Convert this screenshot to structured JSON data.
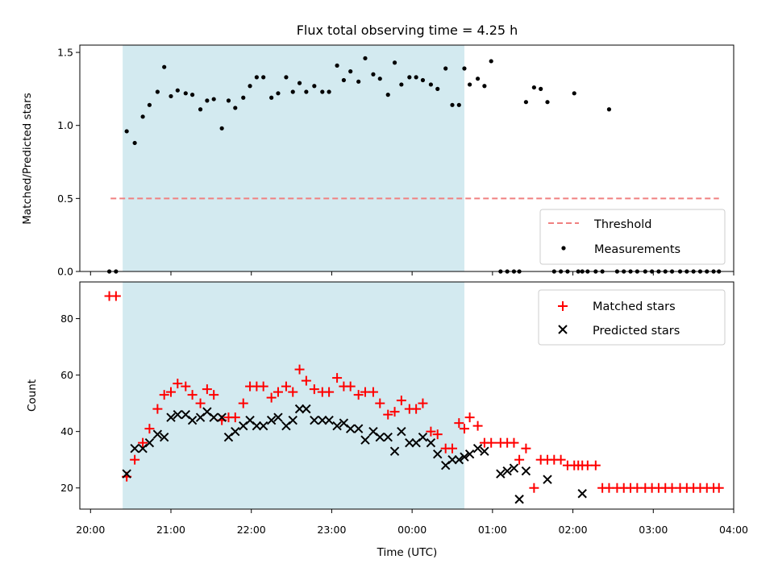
{
  "chart_data": [
    {
      "type": "scatter",
      "title": "Flux total observing time = 4.25 h",
      "ylabel": "Matched/Predicted stars",
      "xlabel": "",
      "xlim": [
        "19:52",
        "04:00"
      ],
      "ylim": [
        0,
        1.55
      ],
      "yticks": [
        "0.0",
        "0.5",
        "1.0",
        "1.5"
      ],
      "grid": false,
      "legend": "lower-right",
      "shaded_interval": [
        "20:24",
        "00:39"
      ],
      "shaded_color": "#d3eaf0",
      "threshold": {
        "name": "Threshold",
        "value": 0.5,
        "x_range": [
          "20:15",
          "03:49"
        ],
        "color": "#f08080"
      },
      "series": [
        {
          "name": "Measurements",
          "color": "#000000",
          "x": [
            "20:14",
            "20:19",
            "20:27",
            "20:33",
            "20:39",
            "20:44",
            "20:50",
            "20:55",
            "21:00",
            "21:05",
            "21:11",
            "21:16",
            "21:22",
            "21:27",
            "21:32",
            "21:38",
            "21:43",
            "21:48",
            "21:54",
            "21:59",
            "22:04",
            "22:09",
            "22:15",
            "22:20",
            "22:26",
            "22:31",
            "22:36",
            "22:41",
            "22:47",
            "22:53",
            "22:58",
            "23:04",
            "23:09",
            "23:14",
            "23:20",
            "23:25",
            "23:31",
            "23:36",
            "23:42",
            "23:47",
            "23:52",
            "23:58",
            "00:03",
            "00:08",
            "00:14",
            "00:19",
            "00:25",
            "00:30",
            "00:35",
            "00:39",
            "00:43",
            "00:49",
            "00:54",
            "00:59",
            "01:06",
            "01:11",
            "01:16",
            "01:20",
            "01:25",
            "01:31",
            "01:36",
            "01:41",
            "01:46",
            "01:51",
            "01:56",
            "02:01",
            "02:04",
            "02:07",
            "02:11",
            "02:17",
            "02:22",
            "02:27",
            "02:33",
            "02:38",
            "02:43",
            "02:48",
            "02:54",
            "02:59",
            "03:04",
            "03:09",
            "03:14",
            "03:20",
            "03:25",
            "03:30",
            "03:35",
            "03:40",
            "03:45",
            "03:49"
          ],
          "y": [
            0,
            0,
            0.96,
            0.88,
            1.06,
            1.14,
            1.23,
            1.4,
            1.2,
            1.24,
            1.22,
            1.21,
            1.11,
            1.17,
            1.18,
            0.98,
            1.17,
            1.12,
            1.19,
            1.27,
            1.33,
            1.33,
            1.19,
            1.22,
            1.33,
            1.23,
            1.29,
            1.23,
            1.27,
            1.23,
            1.23,
            1.41,
            1.31,
            1.37,
            1.3,
            1.46,
            1.35,
            1.32,
            1.21,
            1.43,
            1.28,
            1.33,
            1.33,
            1.31,
            1.28,
            1.25,
            1.39,
            1.14,
            1.14,
            1.39,
            1.28,
            1.32,
            1.27,
            1.44,
            0,
            0,
            0,
            0,
            1.16,
            1.26,
            1.25,
            1.16,
            0,
            0,
            0,
            1.22,
            0,
            0,
            0,
            0,
            0,
            1.11,
            0,
            0,
            0,
            0,
            0,
            0,
            0,
            0,
            0,
            0,
            0,
            0,
            0,
            0,
            0,
            0
          ]
        }
      ]
    },
    {
      "type": "scatter",
      "title": "",
      "xlabel": "Time (UTC)",
      "ylabel": "Count",
      "xlim": [
        "19:52",
        "04:00"
      ],
      "ylim": [
        12.5,
        93
      ],
      "xticks": [
        "20:00",
        "21:00",
        "22:00",
        "23:00",
        "00:00",
        "01:00",
        "02:00",
        "03:00",
        "04:00"
      ],
      "yticks": [
        "20",
        "40",
        "60",
        "80"
      ],
      "grid": false,
      "legend": "top-right",
      "shaded_interval": [
        "20:24",
        "00:39"
      ],
      "shaded_color": "#d3eaf0",
      "series": [
        {
          "name": "Matched stars",
          "marker": "+",
          "color": "#ff0000",
          "x": [
            "20:14",
            "20:19",
            "20:27",
            "20:33",
            "20:39",
            "20:44",
            "20:50",
            "20:55",
            "21:00",
            "21:05",
            "21:11",
            "21:16",
            "21:22",
            "21:27",
            "21:32",
            "21:38",
            "21:43",
            "21:48",
            "21:54",
            "21:59",
            "22:04",
            "22:09",
            "22:15",
            "22:20",
            "22:26",
            "22:31",
            "22:36",
            "22:41",
            "22:47",
            "22:53",
            "22:58",
            "23:04",
            "23:09",
            "23:14",
            "23:20",
            "23:25",
            "23:31",
            "23:36",
            "23:42",
            "23:47",
            "23:52",
            "23:58",
            "00:03",
            "00:08",
            "00:14",
            "00:19",
            "00:25",
            "00:30",
            "00:35",
            "00:39",
            "00:43",
            "00:49",
            "00:54",
            "00:59",
            "01:06",
            "01:11",
            "01:16",
            "01:20",
            "01:25",
            "01:31",
            "01:36",
            "01:41",
            "01:46",
            "01:51",
            "01:56",
            "02:01",
            "02:04",
            "02:07",
            "02:11",
            "02:17",
            "02:22",
            "02:27",
            "02:33",
            "02:38",
            "02:43",
            "02:48",
            "02:54",
            "02:59",
            "03:04",
            "03:09",
            "03:14",
            "03:20",
            "03:25",
            "03:30",
            "03:35",
            "03:40",
            "03:45",
            "03:49"
          ],
          "y": [
            88,
            88,
            24,
            30,
            36,
            41,
            48,
            53,
            54,
            57,
            56,
            53,
            50,
            55,
            53,
            44,
            45,
            45,
            50,
            56,
            56,
            56,
            52,
            54,
            56,
            54,
            62,
            58,
            55,
            54,
            54,
            59,
            56,
            56,
            53,
            54,
            54,
            50,
            46,
            47,
            51,
            48,
            48,
            50,
            40,
            39,
            34,
            34,
            43,
            41,
            45,
            42,
            36,
            36,
            36,
            36,
            36,
            30,
            34,
            20,
            30,
            30,
            30,
            30,
            28,
            28,
            28,
            28,
            28,
            28,
            20,
            20,
            20,
            20,
            20,
            20,
            20,
            20,
            20,
            20,
            20,
            20,
            20,
            20,
            20,
            20,
            20,
            20
          ]
        },
        {
          "name": "Predicted stars",
          "marker": "x",
          "color": "#000000",
          "x": [
            "20:27",
            "20:33",
            "20:39",
            "20:44",
            "20:50",
            "20:55",
            "21:00",
            "21:05",
            "21:11",
            "21:16",
            "21:22",
            "21:27",
            "21:32",
            "21:38",
            "21:43",
            "21:48",
            "21:54",
            "21:59",
            "22:04",
            "22:09",
            "22:15",
            "22:20",
            "22:26",
            "22:31",
            "22:36",
            "22:41",
            "22:47",
            "22:53",
            "22:58",
            "23:04",
            "23:09",
            "23:14",
            "23:20",
            "23:25",
            "23:31",
            "23:36",
            "23:42",
            "23:47",
            "23:52",
            "23:58",
            "00:03",
            "00:08",
            "00:14",
            "00:19",
            "00:25",
            "00:30",
            "00:35",
            "00:39",
            "00:43",
            "00:49",
            "00:54",
            "01:06",
            "01:11",
            "01:16",
            "01:20",
            "01:25",
            "01:41",
            "02:07"
          ],
          "y": [
            25,
            34,
            34,
            36,
            39,
            38,
            45,
            46,
            46,
            44,
            45,
            47,
            45,
            45,
            38,
            40,
            42,
            44,
            42,
            42,
            44,
            45,
            42,
            44,
            48,
            48,
            44,
            44,
            44,
            42,
            43,
            41,
            41,
            37,
            40,
            38,
            38,
            33,
            40,
            36,
            36,
            38,
            36,
            32,
            28,
            30,
            30,
            31,
            32,
            34,
            33,
            25,
            26,
            27,
            16,
            26,
            23,
            18
          ]
        }
      ]
    }
  ]
}
